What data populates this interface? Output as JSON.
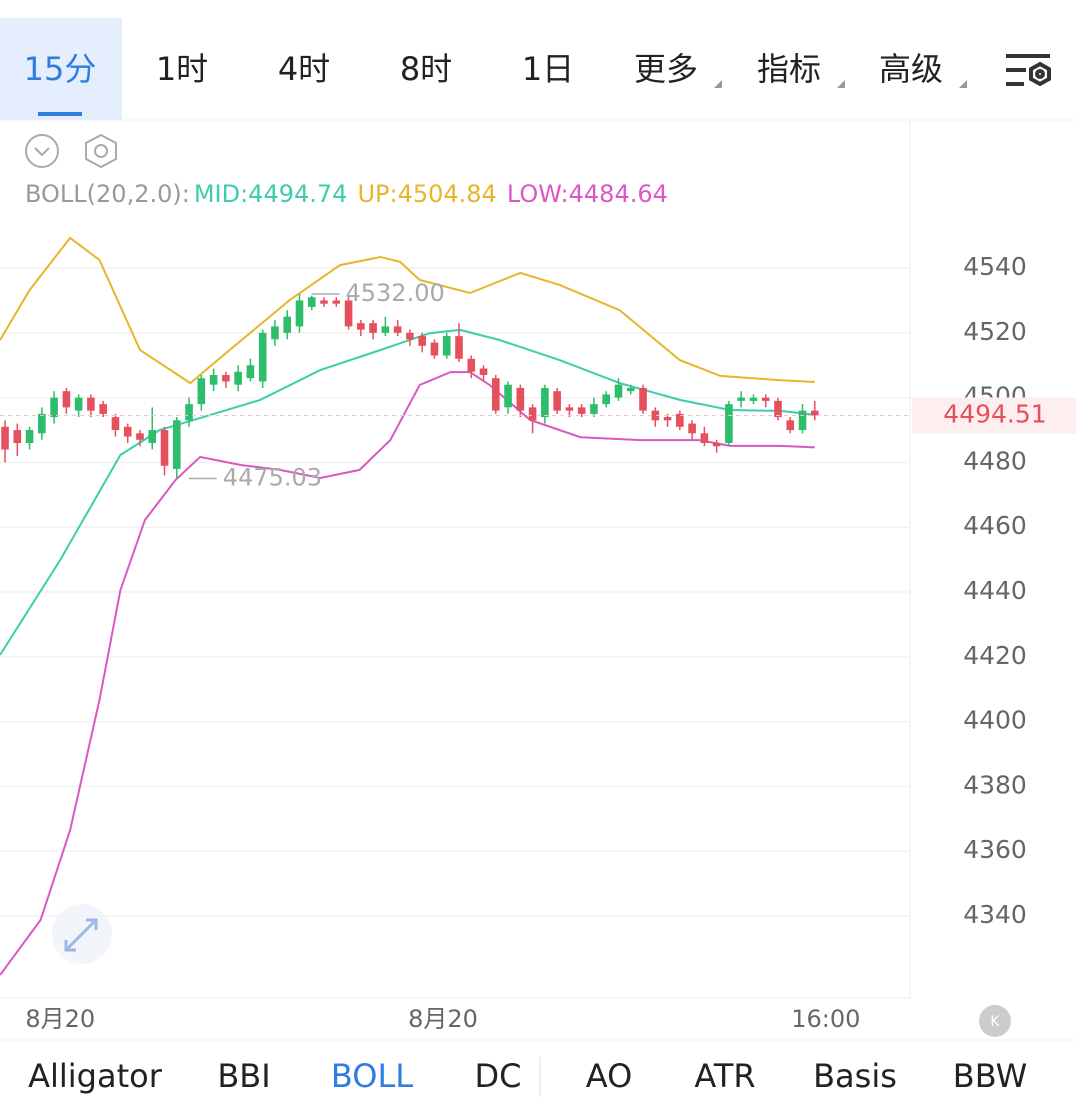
{
  "toolbar": {
    "timeframes": [
      "15分",
      "1时",
      "4时",
      "8时",
      "1日"
    ],
    "active_timeframe": 0,
    "menus": [
      "更多",
      "指标",
      "高级"
    ]
  },
  "chart_data": {
    "type": "candlestick",
    "indicator": "BOLL(20,2.0):",
    "up_color": "#2ebd6b",
    "down_color": "#e5505d",
    "open": [
      4491,
      4490,
      4486,
      4489,
      4494,
      4502,
      4496,
      4500,
      4498,
      4494,
      4491,
      4489,
      4486,
      4490,
      4478,
      4493,
      4498,
      4504,
      4507,
      4504,
      4506,
      4505,
      4518,
      4520,
      4522,
      4528,
      4530,
      4530,
      4530,
      4523,
      4523,
      4520,
      4522,
      4520,
      4519,
      4517,
      4513,
      4519,
      4512,
      4509,
      4506,
      4497,
      4503,
      4497,
      4494,
      4502,
      4497,
      4497,
      4495,
      4498,
      4500,
      4502,
      4503,
      4496,
      4494,
      4495,
      4492,
      4489,
      4486,
      4486,
      4499,
      4499,
      4500,
      4499,
      4493,
      4490,
      4496
    ],
    "high": [
      4493,
      4492,
      4491,
      4497,
      4502,
      4503,
      4501,
      4501,
      4499,
      4495,
      4492,
      4490,
      4497,
      4491,
      4494,
      4500,
      4507,
      4509,
      4508,
      4510,
      4512,
      4521,
      4524,
      4527,
      4532,
      4531.5,
      4531,
      4531,
      4531,
      4524,
      4524,
      4525,
      4524,
      4521,
      4520,
      4518,
      4520,
      4523,
      4513,
      4510,
      4507,
      4505,
      4504,
      4498,
      4504,
      4503,
      4498,
      4498,
      4500,
      4502,
      4506,
      4504,
      4504,
      4497,
      4495,
      4496,
      4493,
      4491,
      4487,
      4499,
      4502,
      4501,
      4501,
      4500,
      4494,
      4498,
      4499
    ],
    "low": [
      4480,
      4482,
      4484,
      4487,
      4492,
      4495,
      4494,
      4494,
      4494,
      4488,
      4486,
      4485,
      4484,
      4476,
      4475.03,
      4491,
      4496,
      4502,
      4503,
      4502,
      4505,
      4503,
      4516,
      4518,
      4520,
      4527,
      4528,
      4528,
      4521,
      4519,
      4518,
      4519,
      4519,
      4516,
      4514,
      4512,
      4512,
      4511,
      4506,
      4505,
      4495,
      4495,
      4494,
      4489,
      4492,
      4495,
      4494,
      4494,
      4494,
      4497,
      4499,
      4501,
      4495,
      4491,
      4491,
      4490,
      4487,
      4485,
      4483,
      4485,
      4497,
      4498,
      4497,
      4493,
      4489,
      4489,
      4493
    ],
    "close": [
      4484,
      4486,
      4490,
      4495,
      4500,
      4497,
      4500,
      4496,
      4495,
      4490,
      4488,
      4487,
      4490,
      4479,
      4493,
      4498,
      4506,
      4507,
      4505,
      4508,
      4510,
      4520,
      4522,
      4525,
      4530,
      4531,
      4529,
      4529,
      4522,
      4521,
      4520,
      4522,
      4520,
      4518,
      4516,
      4513,
      4519,
      4512,
      4508,
      4507,
      4496,
      4504,
      4496,
      4493,
      4503,
      4496,
      4496,
      4495,
      4498,
      4501,
      4504,
      4503,
      4496,
      4493,
      4493,
      4491,
      4489,
      4486,
      4485,
      4498,
      4500,
      4500,
      4499,
      4494,
      4490,
      4496,
      4494.51
    ],
    "series": [
      {
        "name": "MID:4494.74",
        "color": "#3dcdac",
        "x": [
          -0.4,
          4.5,
          9.4,
          12.6,
          15.9,
          20.8,
          25.7,
          30.6,
          34.6,
          37.1,
          40.3,
          45.2,
          50.1,
          55,
          59.1,
          63.2,
          66
        ],
        "values": [
          4420.6,
          4449.9,
          4482.3,
          4490,
          4493.7,
          4499.3,
          4508.5,
          4514.7,
          4519.9,
          4520.9,
          4517.8,
          4511.6,
          4504.5,
          4499.3,
          4496.2,
          4495.9,
          4494.74
        ]
      },
      {
        "name": "UP:4504.84",
        "color": "#e8b52a",
        "x": [
          -0.4,
          2,
          5.3,
          7.7,
          11,
          15.1,
          18.3,
          23.2,
          27.3,
          30.6,
          32.2,
          33.8,
          37.9,
          42,
          45.2,
          50.1,
          55,
          58.3,
          63.2,
          66
        ],
        "values": [
          4517.8,
          4533.2,
          4549.3,
          4542.5,
          4514.7,
          4504.5,
          4514.7,
          4530.1,
          4540.9,
          4543.4,
          4541.9,
          4536.3,
          4532.3,
          4538.5,
          4534.8,
          4527,
          4511.6,
          4506.7,
          4505.4,
          4504.84
        ]
      },
      {
        "name": "LOW:4484.64",
        "color": "#d958c2",
        "x": [
          -0.4,
          2.9,
          5.3,
          7.7,
          9.4,
          11.4,
          13.9,
          15.9,
          19.2,
          22.4,
          25.7,
          28.9,
          31.4,
          33.8,
          36.3,
          37.9,
          39.5,
          42.8,
          46.9,
          51.8,
          56.6,
          59.1,
          63.2,
          66
        ],
        "values": [
          4321.8,
          4338.8,
          4366.5,
          4406.7,
          4440.6,
          4462.2,
          4474.6,
          4481.7,
          4479.2,
          4477.7,
          4475.2,
          4477.7,
          4486.9,
          4503.9,
          4507.9,
          4507.9,
          4503.9,
          4493.1,
          4487.8,
          4486.9,
          4486.9,
          4485.1,
          4485.1,
          4484.64
        ]
      }
    ],
    "xlim": [
      -0.41,
      73.76
    ],
    "xticks": [
      {
        "value": 4.5,
        "label": "8月20"
      },
      {
        "value": 35.7,
        "label": "8月20"
      },
      {
        "value": 66.9,
        "label": "16:00"
      }
    ],
    "ylim": [
      4314.7,
      4585.7
    ],
    "yticks": [
      4340,
      4360,
      4380,
      4400,
      4420,
      4440,
      4460,
      4480,
      4500,
      4520,
      4540
    ],
    "grid": true,
    "high_mark": {
      "x": 24,
      "value": 4532,
      "label": "4532.00"
    },
    "low_mark": {
      "x": 14,
      "value": 4475.03,
      "label": "4475.03"
    },
    "last_price": 4494.51
  },
  "indicator_tabs": [
    "Alligator",
    "BBI",
    "BOLL",
    "DC",
    "AO",
    "ATR",
    "Basis",
    "BBW"
  ],
  "active_indicator": 2
}
